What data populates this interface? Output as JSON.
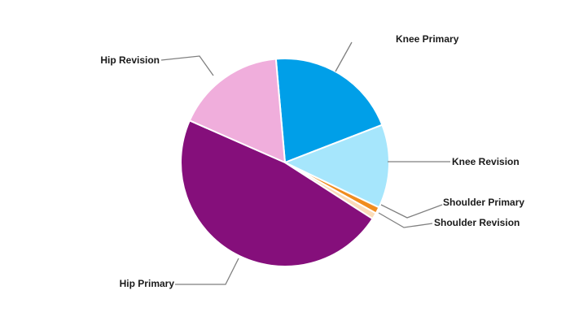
{
  "chart_data": {
    "type": "pie",
    "title": "",
    "start_angle_deg": -5,
    "direction": "clockwise",
    "legend": "none",
    "series": [
      {
        "name": "Knee Primary",
        "value": 20.5,
        "color": "#009fe8"
      },
      {
        "name": "Knee Revision",
        "value": 13.0,
        "color": "#a6e6fc"
      },
      {
        "name": "Shoulder Primary",
        "value": 1.0,
        "color": "#f08c1e"
      },
      {
        "name": "Shoulder Revision",
        "value": 1.0,
        "color": "#fcdcb8"
      },
      {
        "name": "Hip Primary",
        "value": 47.5,
        "color": "#850f7b"
      },
      {
        "name": "Hip Revision",
        "value": 17.0,
        "color": "#f0aedc"
      }
    ]
  }
}
